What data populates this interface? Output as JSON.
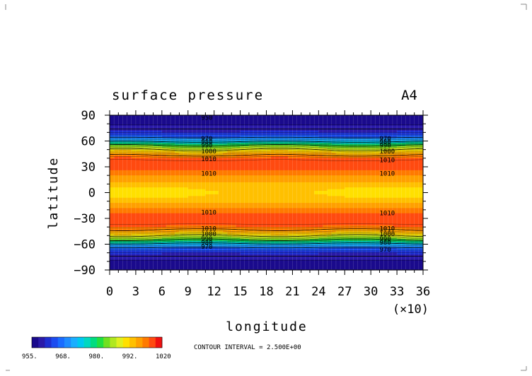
{
  "chart_data": {
    "type": "heatmap",
    "title": "surface pressure",
    "panel_label": "A4",
    "xlabel": "longitude",
    "ylabel": "latitude",
    "x_multiplier_label": "(×10)",
    "xlim": [
      0,
      36
    ],
    "ylim": [
      -90,
      90
    ],
    "x_ticks": [
      "0",
      "3",
      "6",
      "9",
      "12",
      "15",
      "18",
      "21",
      "24",
      "27",
      "30",
      "33",
      "36"
    ],
    "y_ticks": [
      "90",
      "60",
      "30",
      "0",
      "−30",
      "−60",
      "−90"
    ],
    "contour_interval_text": "CONTOUR INTERVAL = 2.500E+00",
    "colorbar": {
      "min": 955,
      "max": 1020,
      "tick_labels": [
        "955.",
        "968.",
        "980.",
        "992.",
        "1020"
      ],
      "colors": [
        "#1a0a8c",
        "#2a1aa8",
        "#1e2fd0",
        "#1c4cf0",
        "#1a6cff",
        "#1e8cff",
        "#1aaeff",
        "#00c8f0",
        "#00d8c0",
        "#00dc80",
        "#20e040",
        "#70e020",
        "#b0e820",
        "#e0f020",
        "#ffe000",
        "#ffc000",
        "#ffa000",
        "#ff7a00",
        "#ff4a10",
        "#f01010"
      ]
    },
    "latitude_profile": [
      {
        "lat": 90,
        "value": 957
      },
      {
        "lat": 80,
        "value": 957
      },
      {
        "lat": 70,
        "value": 962
      },
      {
        "lat": 65,
        "value": 968
      },
      {
        "lat": 60,
        "value": 978
      },
      {
        "lat": 55,
        "value": 990
      },
      {
        "lat": 50,
        "value": 1000
      },
      {
        "lat": 45,
        "value": 1008
      },
      {
        "lat": 40,
        "value": 1014
      },
      {
        "lat": 35,
        "value": 1016
      },
      {
        "lat": 30,
        "value": 1016
      },
      {
        "lat": 25,
        "value": 1013
      },
      {
        "lat": 20,
        "value": 1010
      },
      {
        "lat": 15,
        "value": 1008
      },
      {
        "lat": 10,
        "value": 1006
      },
      {
        "lat": 5,
        "value": 1004
      },
      {
        "lat": 0,
        "value": 1003
      },
      {
        "lat": -5,
        "value": 1004
      },
      {
        "lat": -10,
        "value": 1006
      },
      {
        "lat": -15,
        "value": 1008
      },
      {
        "lat": -20,
        "value": 1011
      },
      {
        "lat": -25,
        "value": 1014
      },
      {
        "lat": -30,
        "value": 1016
      },
      {
        "lat": -35,
        "value": 1016
      },
      {
        "lat": -40,
        "value": 1013
      },
      {
        "lat": -45,
        "value": 1008
      },
      {
        "lat": -50,
        "value": 1000
      },
      {
        "lat": -55,
        "value": 990
      },
      {
        "lat": -60,
        "value": 978
      },
      {
        "lat": -65,
        "value": 968
      },
      {
        "lat": -70,
        "value": 962
      },
      {
        "lat": -80,
        "value": 957
      },
      {
        "lat": -90,
        "value": 957
      }
    ],
    "contour_labels": [
      {
        "text": "950",
        "lon": 10.5,
        "lat": 87
      },
      {
        "text": "970",
        "lon": 10.5,
        "lat": 63
      },
      {
        "text": "980",
        "lon": 10.5,
        "lat": 59
      },
      {
        "text": "990",
        "lon": 10.5,
        "lat": 55
      },
      {
        "text": "1000",
        "lon": 10.5,
        "lat": 48
      },
      {
        "text": "1010",
        "lon": 10.5,
        "lat": 39
      },
      {
        "text": "1010",
        "lon": 10.5,
        "lat": 22
      },
      {
        "text": "970",
        "lon": 31,
        "lat": 63
      },
      {
        "text": "980",
        "lon": 31,
        "lat": 59
      },
      {
        "text": "990",
        "lon": 31,
        "lat": 55
      },
      {
        "text": "1000",
        "lon": 31,
        "lat": 48
      },
      {
        "text": "1010",
        "lon": 31,
        "lat": 38
      },
      {
        "text": "1010",
        "lon": 31,
        "lat": 22
      },
      {
        "text": "1010",
        "lon": 10.5,
        "lat": -23
      },
      {
        "text": "1010",
        "lon": 10.5,
        "lat": -42
      },
      {
        "text": "1000",
        "lon": 10.5,
        "lat": -48
      },
      {
        "text": "990",
        "lon": 10.5,
        "lat": -54
      },
      {
        "text": "980",
        "lon": 10.5,
        "lat": -58
      },
      {
        "text": "970",
        "lon": 10.5,
        "lat": -63
      },
      {
        "text": "1010",
        "lon": 31,
        "lat": -24
      },
      {
        "text": "1010",
        "lon": 31,
        "lat": -42
      },
      {
        "text": "1000",
        "lon": 31,
        "lat": -48
      },
      {
        "text": "990",
        "lon": 31,
        "lat": -54
      },
      {
        "text": "980",
        "lon": 31,
        "lat": -58
      },
      {
        "text": "970",
        "lon": 31,
        "lat": -66
      }
    ]
  }
}
